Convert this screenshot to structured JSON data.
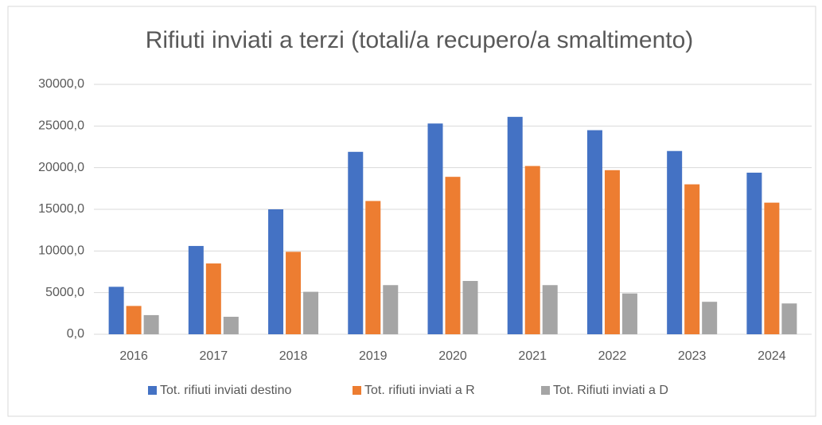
{
  "chart_data": {
    "type": "bar",
    "title": "Rifiuti inviati a terzi (totali/a recupero/a smaltimento)",
    "categories": [
      "2016",
      "2017",
      "2018",
      "2019",
      "2020",
      "2021",
      "2022",
      "2023",
      "2024"
    ],
    "series": [
      {
        "name": "Tot. rifiuti inviati destino",
        "color": "#4472c4",
        "values": [
          5700,
          10600,
          15000,
          21900,
          25300,
          26100,
          24500,
          22000,
          19400
        ]
      },
      {
        "name": "Tot. rifiuti inviati a R",
        "color": "#ed7d31",
        "values": [
          3400,
          8500,
          9900,
          16000,
          18900,
          20200,
          19700,
          18000,
          15800
        ]
      },
      {
        "name": "Tot. Rifiuti inviati a D",
        "color": "#a5a5a5",
        "values": [
          2300,
          2100,
          5100,
          5900,
          6400,
          5900,
          4900,
          3900,
          3700
        ]
      }
    ],
    "ylim": [
      0,
      30000
    ],
    "yticks": [
      {
        "value": 0,
        "label": "0,0"
      },
      {
        "value": 5000,
        "label": "5000,0"
      },
      {
        "value": 10000,
        "label": "10000,0"
      },
      {
        "value": 15000,
        "label": "15000,0"
      },
      {
        "value": 20000,
        "label": "20000,0"
      },
      {
        "value": 25000,
        "label": "25000,0"
      },
      {
        "value": 30000,
        "label": "30000,0"
      }
    ],
    "grid": true,
    "legend": "bottom"
  }
}
